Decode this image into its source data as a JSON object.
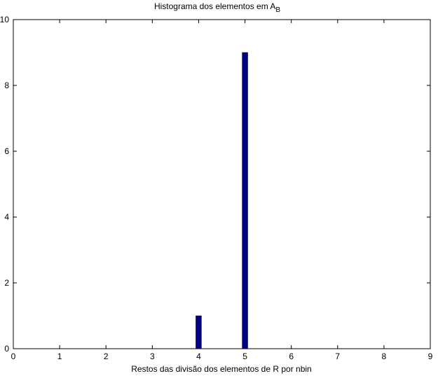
{
  "chart_data": {
    "type": "bar",
    "title": "Histograma dos elementos em A",
    "title_subscript": "B",
    "xlabel": "Restos das divisão dos elementos de R por nbin",
    "ylabel": "",
    "x": [
      4,
      5
    ],
    "values": [
      1,
      9
    ],
    "xlim": [
      0,
      9
    ],
    "ylim": [
      0,
      10
    ],
    "xticks": [
      0,
      1,
      2,
      3,
      4,
      5,
      6,
      7,
      8,
      9
    ],
    "yticks": [
      0,
      2,
      4,
      6,
      8,
      10
    ],
    "bar_color": "#00007f",
    "grid": false
  }
}
